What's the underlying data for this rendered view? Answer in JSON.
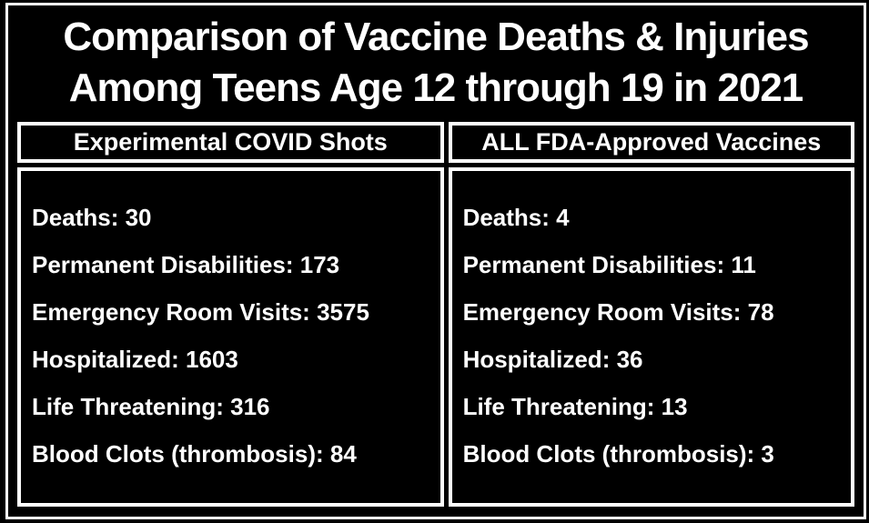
{
  "title": {
    "line1": "Comparison of Vaccine Deaths & Injuries",
    "line2": "Among Teens Age 12 through 19 in 2021"
  },
  "columns": [
    {
      "header": "Experimental COVID Shots",
      "rows": [
        {
          "label": "Deaths",
          "value": 30,
          "text": "Deaths: 30"
        },
        {
          "label": "Permanent Disabilities",
          "value": 173,
          "text": "Permanent Disabilities: 173"
        },
        {
          "label": "Emergency Room Visits",
          "value": 3575,
          "text": "Emergency Room Visits: 3575"
        },
        {
          "label": "Hospitalized",
          "value": 1603,
          "text": "Hospitalized: 1603"
        },
        {
          "label": "Life Threatening",
          "value": 316,
          "text": "Life Threatening: 316"
        },
        {
          "label": "Blood Clots (thrombosis)",
          "value": 84,
          "text": "Blood Clots (thrombosis): 84"
        }
      ]
    },
    {
      "header": "ALL FDA-Approved Vaccines",
      "rows": [
        {
          "label": "Deaths",
          "value": 4,
          "text": "Deaths: 4"
        },
        {
          "label": "Permanent Disabilities",
          "value": 11,
          "text": "Permanent Disabilities: 11"
        },
        {
          "label": "Emergency Room Visits",
          "value": 78,
          "text": "Emergency Room Visits: 78"
        },
        {
          "label": "Hospitalized",
          "value": 36,
          "text": "Hospitalized: 36"
        },
        {
          "label": "Life Threatening",
          "value": 13,
          "text": "Life Threatening: 13"
        },
        {
          "label": "Blood Clots (thrombosis)",
          "value": 3,
          "text": "Blood Clots (thrombosis): 3"
        }
      ]
    }
  ],
  "colors": {
    "background": "#000000",
    "text": "#ffffff",
    "border": "#ffffff"
  },
  "chart_data": {
    "type": "table",
    "title": "Comparison of Vaccine Deaths & Injuries Among Teens Age 12 through 19 in 2021",
    "categories": [
      "Deaths",
      "Permanent Disabilities",
      "Emergency Room Visits",
      "Hospitalized",
      "Life Threatening",
      "Blood Clots (thrombosis)"
    ],
    "series": [
      {
        "name": "Experimental COVID Shots",
        "values": [
          30,
          173,
          3575,
          1603,
          316,
          84
        ]
      },
      {
        "name": "ALL FDA-Approved Vaccines",
        "values": [
          4,
          11,
          78,
          36,
          13,
          3
        ]
      }
    ]
  }
}
